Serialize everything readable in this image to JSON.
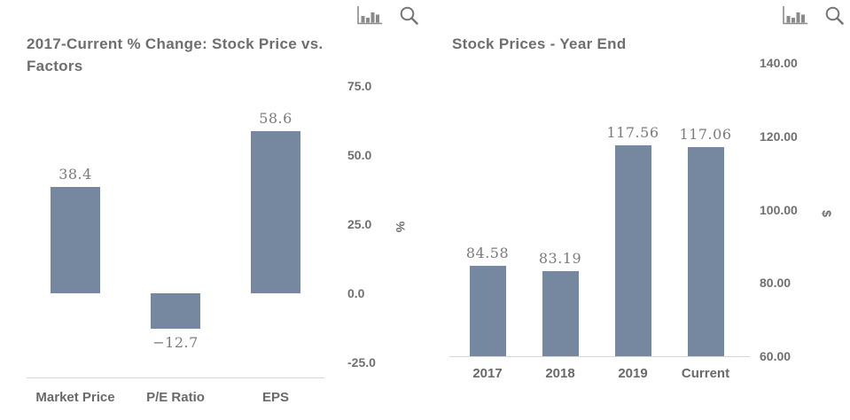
{
  "colors": {
    "bar": "#7688a0",
    "title_text": "#6e6e6e",
    "tick_text": "#6f6f6f",
    "data_label_text": "#7b7b7b",
    "category_text": "#696969",
    "axis_line": "#d6d6d6",
    "icon": "#7c7c7c"
  },
  "header_icons": [
    {
      "name": "bar-chart-icon"
    },
    {
      "name": "magnifier-focus-icon"
    }
  ],
  "chart_data": [
    {
      "type": "bar",
      "title": "2017-Current % Change: Stock Price vs. Factors",
      "categories": [
        "Market Price",
        "P/E Ratio",
        "EPS"
      ],
      "values": [
        38.4,
        -12.7,
        58.6
      ],
      "data_labels": [
        "38.4",
        "−12.7",
        "58.6"
      ],
      "xlabel": "",
      "ylabel": "%",
      "ylim": [
        -25,
        75
      ],
      "baseline": 0,
      "ytick_values": [
        75,
        50,
        25,
        0,
        -25
      ],
      "ytick_labels": [
        "75.0",
        "50.0",
        "25.0",
        "0.0",
        "-25.0"
      ],
      "grid": false,
      "legend": "none",
      "yaxis_position": "right"
    },
    {
      "type": "bar",
      "title": "Stock Prices - Year End",
      "categories": [
        "2017",
        "2018",
        "2019",
        "Current"
      ],
      "values": [
        84.58,
        83.19,
        117.56,
        117.06
      ],
      "data_labels": [
        "84.58",
        "83.19",
        "117.56",
        "117.06"
      ],
      "xlabel": "",
      "ylabel": "$",
      "ylim": [
        60,
        140
      ],
      "baseline": 60,
      "ytick_values": [
        140,
        120,
        100,
        80,
        60
      ],
      "ytick_labels": [
        "140.00",
        "120.00",
        "100.00",
        "80.00",
        "60.00"
      ],
      "grid": false,
      "legend": "none",
      "yaxis_position": "right"
    }
  ]
}
